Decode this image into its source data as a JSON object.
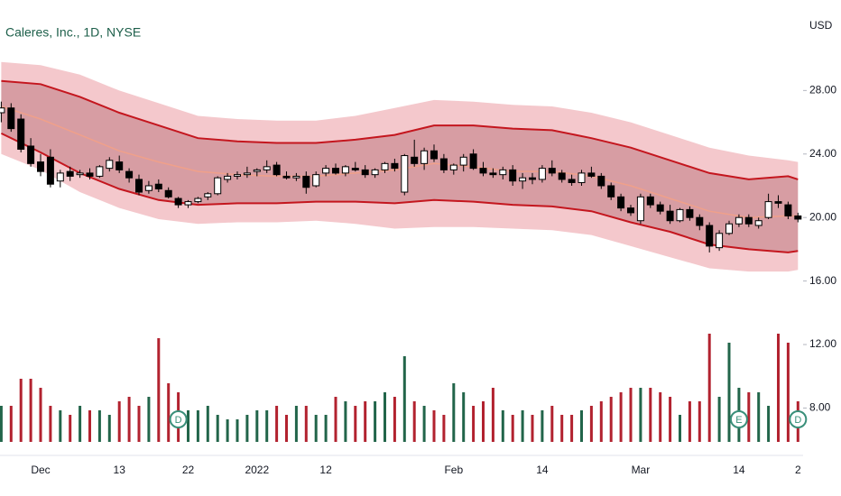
{
  "chart_data": {
    "type": "candlestick",
    "title": "Caleres, Inc., 1D, NYSE",
    "y_label": "USD",
    "ylim": [
      5.3,
      33.7
    ],
    "yticks": [
      {
        "value": 28,
        "label": "28.00"
      },
      {
        "value": 24,
        "label": "24.00"
      },
      {
        "value": 20,
        "label": "20.00"
      },
      {
        "value": 16,
        "label": "16.00"
      },
      {
        "value": 12,
        "label": "12.00"
      },
      {
        "value": 8,
        "label": "8.00"
      }
    ],
    "categories": [
      null,
      null,
      null,
      null,
      "Dec",
      null,
      null,
      null,
      null,
      null,
      null,
      null,
      "13",
      null,
      null,
      null,
      null,
      null,
      null,
      "22",
      null,
      null,
      null,
      null,
      null,
      null,
      "2022",
      null,
      null,
      null,
      null,
      null,
      null,
      "12",
      null,
      null,
      null,
      null,
      null,
      null,
      null,
      null,
      null,
      null,
      null,
      null,
      "Feb",
      null,
      null,
      null,
      null,
      null,
      null,
      null,
      null,
      "14",
      null,
      null,
      null,
      null,
      null,
      null,
      null,
      null,
      null,
      "Mar",
      null,
      null,
      null,
      null,
      null,
      null,
      null,
      null,
      null,
      "14",
      null,
      null,
      null,
      null,
      null,
      "2"
    ],
    "candles": [
      [
        26.6,
        27.3,
        26.0,
        26.9
      ],
      [
        26.9,
        27.2,
        25.4,
        25.6
      ],
      [
        26.2,
        26.5,
        24.1,
        24.3
      ],
      [
        24.5,
        25.0,
        23.2,
        23.4
      ],
      [
        23.5,
        24.0,
        22.6,
        22.9
      ],
      [
        23.8,
        24.3,
        21.9,
        22.1
      ],
      [
        22.3,
        23.0,
        21.9,
        22.8
      ],
      [
        22.9,
        23.2,
        22.3,
        22.6
      ],
      [
        22.7,
        23.0,
        22.5,
        22.8
      ],
      [
        22.8,
        23.1,
        22.4,
        22.6
      ],
      [
        22.6,
        23.3,
        22.5,
        23.2
      ],
      [
        23.1,
        23.8,
        22.9,
        23.6
      ],
      [
        23.5,
        23.9,
        22.8,
        23.0
      ],
      [
        22.9,
        23.1,
        22.2,
        22.5
      ],
      [
        22.4,
        22.7,
        21.4,
        21.6
      ],
      [
        21.7,
        22.3,
        21.5,
        22.0
      ],
      [
        22.1,
        22.4,
        21.6,
        21.8
      ],
      [
        21.7,
        21.9,
        21.2,
        21.3
      ],
      [
        21.2,
        21.3,
        20.6,
        20.8
      ],
      [
        20.8,
        21.1,
        20.6,
        21.0
      ],
      [
        21.0,
        21.3,
        20.9,
        21.2
      ],
      [
        21.3,
        21.6,
        21.1,
        21.5
      ],
      [
        21.5,
        22.6,
        21.4,
        22.5
      ],
      [
        22.4,
        22.8,
        22.2,
        22.6
      ],
      [
        22.6,
        22.9,
        22.4,
        22.7
      ],
      [
        22.7,
        23.2,
        22.5,
        22.8
      ],
      [
        22.9,
        23.1,
        22.6,
        23.0
      ],
      [
        23.0,
        23.6,
        22.8,
        23.2
      ],
      [
        23.3,
        23.5,
        22.6,
        22.7
      ],
      [
        22.6,
        22.9,
        22.4,
        22.5
      ],
      [
        22.5,
        22.8,
        22.3,
        22.6
      ],
      [
        22.6,
        22.9,
        21.5,
        21.9
      ],
      [
        22.0,
        22.9,
        21.9,
        22.7
      ],
      [
        22.8,
        23.3,
        22.6,
        23.1
      ],
      [
        23.1,
        23.4,
        22.7,
        22.8
      ],
      [
        22.8,
        23.3,
        22.6,
        23.2
      ],
      [
        23.1,
        23.5,
        22.9,
        23.0
      ],
      [
        23.0,
        23.3,
        22.5,
        22.7
      ],
      [
        22.7,
        23.1,
        22.5,
        23.0
      ],
      [
        23.0,
        23.5,
        22.8,
        23.4
      ],
      [
        23.4,
        23.7,
        22.9,
        23.1
      ],
      [
        21.6,
        24.0,
        21.4,
        23.9
      ],
      [
        23.8,
        24.9,
        23.2,
        23.4
      ],
      [
        23.4,
        24.4,
        23.0,
        24.2
      ],
      [
        24.2,
        24.6,
        23.5,
        23.7
      ],
      [
        23.7,
        24.0,
        22.8,
        23.0
      ],
      [
        23.0,
        23.4,
        22.7,
        23.3
      ],
      [
        23.3,
        24.0,
        22.9,
        23.8
      ],
      [
        24.0,
        24.3,
        23.0,
        23.1
      ],
      [
        23.1,
        23.5,
        22.6,
        22.8
      ],
      [
        22.8,
        23.1,
        22.5,
        22.7
      ],
      [
        22.7,
        23.2,
        22.4,
        23.0
      ],
      [
        23.0,
        23.3,
        22.0,
        22.3
      ],
      [
        22.3,
        22.8,
        21.8,
        22.5
      ],
      [
        22.5,
        22.8,
        22.1,
        22.4
      ],
      [
        22.4,
        23.3,
        22.2,
        23.1
      ],
      [
        23.1,
        23.6,
        22.6,
        22.8
      ],
      [
        22.8,
        23.0,
        22.2,
        22.4
      ],
      [
        22.4,
        22.7,
        22.0,
        22.2
      ],
      [
        22.2,
        23.0,
        22.0,
        22.8
      ],
      [
        22.8,
        23.2,
        22.5,
        22.6
      ],
      [
        22.6,
        22.8,
        21.8,
        22.0
      ],
      [
        22.0,
        22.2,
        21.1,
        21.3
      ],
      [
        21.3,
        21.5,
        20.4,
        20.6
      ],
      [
        20.6,
        20.8,
        20.1,
        20.3
      ],
      [
        19.8,
        21.5,
        19.6,
        21.3
      ],
      [
        21.3,
        21.5,
        20.6,
        20.8
      ],
      [
        20.8,
        21.0,
        20.2,
        20.4
      ],
      [
        20.4,
        20.8,
        19.6,
        19.8
      ],
      [
        19.8,
        20.6,
        19.7,
        20.5
      ],
      [
        20.5,
        20.7,
        19.8,
        20.0
      ],
      [
        20.0,
        20.2,
        19.2,
        19.5
      ],
      [
        19.5,
        19.7,
        17.8,
        18.2
      ],
      [
        18.1,
        19.2,
        17.9,
        19.0
      ],
      [
        19.0,
        19.8,
        18.9,
        19.6
      ],
      [
        19.6,
        20.2,
        19.4,
        20.0
      ],
      [
        20.0,
        20.2,
        19.4,
        19.6
      ],
      [
        19.5,
        20.0,
        19.3,
        19.8
      ],
      [
        20.0,
        21.5,
        19.9,
        21.0
      ],
      [
        21.0,
        21.4,
        20.6,
        20.9
      ],
      [
        20.8,
        21.0,
        19.9,
        20.1
      ],
      [
        20.1,
        20.3,
        19.7,
        19.9
      ]
    ],
    "volume_lim": [
      0,
      490
    ],
    "volumes": [
      40,
      40,
      70,
      70,
      60,
      40,
      35,
      30,
      40,
      35,
      35,
      30,
      45,
      50,
      40,
      50,
      115,
      65,
      55,
      35,
      35,
      40,
      30,
      25,
      25,
      30,
      35,
      35,
      40,
      30,
      40,
      40,
      30,
      30,
      50,
      45,
      40,
      45,
      45,
      55,
      50,
      95,
      45,
      40,
      35,
      30,
      65,
      55,
      40,
      45,
      60,
      35,
      30,
      35,
      30,
      35,
      40,
      30,
      30,
      35,
      40,
      45,
      50,
      55,
      60,
      60,
      60,
      55,
      50,
      30,
      45,
      45,
      120,
      50,
      110,
      60,
      55,
      55,
      40,
      120,
      110,
      45
    ],
    "up_color": "#ffffff",
    "down_color": "#000000",
    "volume_up_color": "#22654a",
    "volume_down_color": "#b2222f",
    "bands": {
      "x": [
        0,
        4,
        8,
        12,
        16,
        20,
        24,
        28,
        32,
        36,
        40,
        44,
        48,
        52,
        56,
        60,
        64,
        68,
        72,
        76,
        80,
        81
      ],
      "upper": [
        28.6,
        28.4,
        27.6,
        26.6,
        25.8,
        25.0,
        24.8,
        24.7,
        24.7,
        24.9,
        25.2,
        25.8,
        25.8,
        25.6,
        25.5,
        25.0,
        24.4,
        23.6,
        22.8,
        22.4,
        22.6,
        22.4
      ],
      "middle": [
        27.0,
        26.2,
        25.2,
        24.2,
        23.5,
        22.9,
        22.7,
        22.6,
        22.6,
        22.8,
        23.0,
        23.4,
        23.2,
        22.9,
        22.9,
        22.6,
        22.0,
        21.2,
        20.4,
        20.0,
        20.1,
        20.1
      ],
      "lower": [
        25.3,
        24.1,
        22.8,
        21.8,
        21.1,
        20.8,
        20.9,
        20.9,
        21.0,
        21.0,
        20.9,
        21.1,
        21.0,
        20.8,
        20.7,
        20.4,
        19.7,
        19.1,
        18.3,
        18.0,
        17.8,
        17.9
      ],
      "outer_upper": [
        29.8,
        29.6,
        29.0,
        28.0,
        27.2,
        26.4,
        26.2,
        26.1,
        26.1,
        26.4,
        26.9,
        27.4,
        27.3,
        27.1,
        27.0,
        26.6,
        26.0,
        25.2,
        24.4,
        23.9,
        23.6,
        23.5
      ],
      "outer_lower": [
        24.0,
        23.0,
        21.6,
        20.6,
        19.9,
        19.6,
        19.7,
        19.7,
        19.8,
        19.6,
        19.3,
        19.4,
        19.4,
        19.3,
        19.2,
        18.9,
        18.2,
        17.5,
        16.8,
        16.6,
        16.6,
        16.7
      ]
    },
    "events": [
      {
        "index": 18,
        "label": "D"
      },
      {
        "index": 75,
        "label": "E"
      },
      {
        "index": 81,
        "label": "D"
      }
    ]
  }
}
